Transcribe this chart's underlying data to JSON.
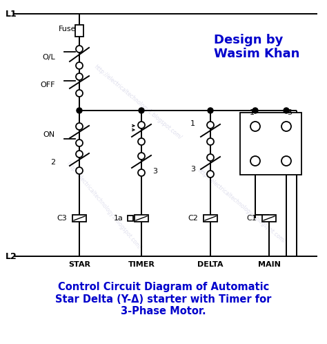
{
  "title_line1": "Control Circuit Diagram of Automatic",
  "title_line2": "Star Delta (Y-Δ) starter with Timer for",
  "title_line3": "3-Phase Motor.",
  "title_color": "#0000CC",
  "title_fontsize": 10.5,
  "design_text": "Design by\nWasim Khan",
  "design_color": "#0000CC",
  "design_fontsize": 13,
  "bg_color": "#ffffff",
  "line_color": "#000000",
  "fig_w": 4.74,
  "fig_h": 4.98,
  "dpi": 100
}
